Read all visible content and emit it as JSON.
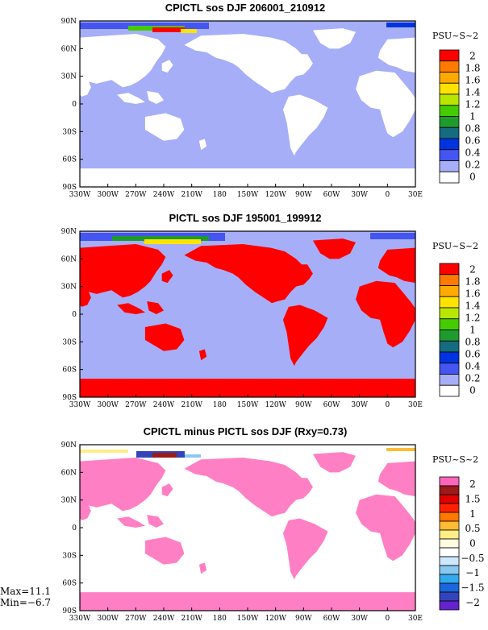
{
  "chart_data": [
    {
      "type": "heatmap",
      "title": "CPICTL sos DJF 206001_210912",
      "colorbar_title": "PSU~S~2",
      "x_ticks": [
        "330W",
        "300W",
        "270W",
        "240W",
        "210W",
        "180",
        "150W",
        "120W",
        "90W",
        "60W",
        "30W",
        "0",
        "30E"
      ],
      "y_ticks": [
        "90N",
        "60N",
        "30N",
        "0",
        "30S",
        "60S",
        "90S"
      ],
      "colorbar": {
        "labels": [
          "2",
          "1.8",
          "1.6",
          "1.4",
          "1.2",
          "1",
          "0.8",
          "0.6",
          "0.4",
          "0.2",
          "0"
        ],
        "colors": [
          "#ff0000",
          "#ff7a00",
          "#ffaa00",
          "#ffe300",
          "#b8e600",
          "#44cc00",
          "#1f9b2e",
          "#156b7f",
          "#0033e0",
          "#4455f0",
          "#a6aef8",
          "#ffffff"
        ]
      },
      "land_color": "#ffffff",
      "ocean_color": "#a6aef8"
    },
    {
      "type": "heatmap",
      "title": "PICTL sos DJF 195001_199912",
      "colorbar_title": "PSU~S~2",
      "x_ticks": [
        "330W",
        "300W",
        "270W",
        "240W",
        "210W",
        "180",
        "150W",
        "120W",
        "90W",
        "60W",
        "30W",
        "0",
        "30E"
      ],
      "y_ticks": [
        "90N",
        "60N",
        "30N",
        "0",
        "30S",
        "60S",
        "90S"
      ],
      "colorbar": {
        "labels": [
          "2",
          "1.8",
          "1.6",
          "1.4",
          "1.2",
          "1",
          "0.8",
          "0.6",
          "0.4",
          "0.2",
          "0"
        ],
        "colors": [
          "#ff0000",
          "#ff7a00",
          "#ffaa00",
          "#ffe300",
          "#b8e600",
          "#44cc00",
          "#1f9b2e",
          "#156b7f",
          "#0033e0",
          "#4455f0",
          "#a6aef8",
          "#ffffff"
        ]
      },
      "land_color": "#ff0000",
      "ocean_color": "#a6aef8"
    },
    {
      "type": "heatmap",
      "title": "CPICTL minus PICTL sos DJF (Rxy=0.73)",
      "colorbar_title": "PSU~S~2",
      "x_ticks": [
        "330W",
        "300W",
        "270W",
        "240W",
        "210W",
        "180",
        "150W",
        "120W",
        "90W",
        "60W",
        "30W",
        "0",
        "30E"
      ],
      "y_ticks": [
        "90N",
        "60N",
        "30N",
        "0",
        "30S",
        "60S",
        "90S"
      ],
      "colorbar": {
        "labels": [
          "2",
          "1.5",
          "1",
          "0.5",
          "0",
          "−0.5",
          "−1",
          "−1.5",
          "−2"
        ],
        "colors": [
          "#ff66bb",
          "#9b1a1a",
          "#e00000",
          "#ff2200",
          "#ff7700",
          "#ffbb33",
          "#ffee88",
          "#fffbe0",
          "#ffffff",
          "#cce8ff",
          "#88c8f0",
          "#33aaee",
          "#1a66dd",
          "#3344bb",
          "#6622cc"
        ]
      },
      "land_color": "#ff7fc4",
      "ocean_color": "#ffffff",
      "max_label": "Max=11.1",
      "min_label": "Min=−6.7"
    }
  ]
}
